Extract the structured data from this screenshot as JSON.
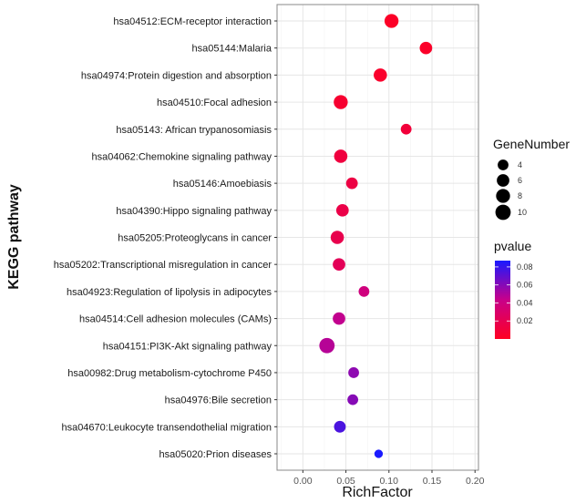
{
  "chart_data": {
    "type": "scatter",
    "title": "",
    "xlabel": "RichFactor",
    "ylabel": "KEGG pathway",
    "xlim": [
      -0.03,
      0.204
    ],
    "xticks": [
      0.0,
      0.05,
      0.1,
      0.15,
      0.2
    ],
    "xtick_labels": [
      "0.00",
      "0.05",
      "0.10",
      "0.15",
      "0.20"
    ],
    "grid": true,
    "points": [
      {
        "pathway": "hsa04512:ECM-receptor interaction",
        "richFactor": 0.103,
        "geneNumber": 8,
        "pvalue": 0.002
      },
      {
        "pathway": "hsa05144:Malaria",
        "richFactor": 0.143,
        "geneNumber": 6,
        "pvalue": 0.003
      },
      {
        "pathway": "hsa04974:Protein digestion and absorption",
        "richFactor": 0.09,
        "geneNumber": 7,
        "pvalue": 0.004
      },
      {
        "pathway": "hsa04510:Focal adhesion",
        "richFactor": 0.044,
        "geneNumber": 8,
        "pvalue": 0.006
      },
      {
        "pathway": "hsa05143: African trypanosomiasis",
        "richFactor": 0.12,
        "geneNumber": 4,
        "pvalue": 0.01
      },
      {
        "pathway": "hsa04062:Chemokine signaling pathway",
        "richFactor": 0.044,
        "geneNumber": 7,
        "pvalue": 0.012
      },
      {
        "pathway": "hsa05146:Amoebiasis",
        "richFactor": 0.057,
        "geneNumber": 5,
        "pvalue": 0.014
      },
      {
        "pathway": "hsa04390:Hippo signaling pathway",
        "richFactor": 0.046,
        "geneNumber": 6,
        "pvalue": 0.016
      },
      {
        "pathway": "hsa05205:Proteoglycans in cancer",
        "richFactor": 0.04,
        "geneNumber": 7,
        "pvalue": 0.018
      },
      {
        "pathway": "hsa05202:Transcriptional misregulation in cancer",
        "richFactor": 0.042,
        "geneNumber": 6,
        "pvalue": 0.022
      },
      {
        "pathway": "hsa04923:Regulation of lipolysis in adipocytes",
        "richFactor": 0.071,
        "geneNumber": 4,
        "pvalue": 0.038
      },
      {
        "pathway": "hsa04514:Cell adhesion molecules (CAMs)",
        "richFactor": 0.042,
        "geneNumber": 6,
        "pvalue": 0.045
      },
      {
        "pathway": "hsa04151:PI3K-Akt signaling pathway",
        "richFactor": 0.028,
        "geneNumber": 10,
        "pvalue": 0.048
      },
      {
        "pathway": "hsa00982:Drug metabolism-cytochrome P450",
        "richFactor": 0.059,
        "geneNumber": 4,
        "pvalue": 0.058
      },
      {
        "pathway": "hsa04976:Bile secretion",
        "richFactor": 0.058,
        "geneNumber": 4,
        "pvalue": 0.06
      },
      {
        "pathway": "hsa04670:Leukocyte transendothelial migration",
        "richFactor": 0.043,
        "geneNumber": 5,
        "pvalue": 0.075
      },
      {
        "pathway": "hsa05020:Prion diseases",
        "richFactor": 0.088,
        "geneNumber": 2,
        "pvalue": 0.088
      }
    ],
    "size_legend": {
      "title": "GeneNumber",
      "values": [
        4,
        6,
        8,
        10
      ],
      "labels": [
        "4",
        "6",
        "8",
        "10"
      ]
    },
    "color_legend": {
      "title": "pvalue",
      "range": [
        0,
        0.087
      ],
      "ticks": [
        0.08,
        0.06,
        0.04,
        0.02
      ],
      "tick_labels": [
        "0.08",
        "0.06",
        "0.04",
        "0.02"
      ],
      "low_color": "#ff0022",
      "high_color": "#1a1aff"
    }
  }
}
